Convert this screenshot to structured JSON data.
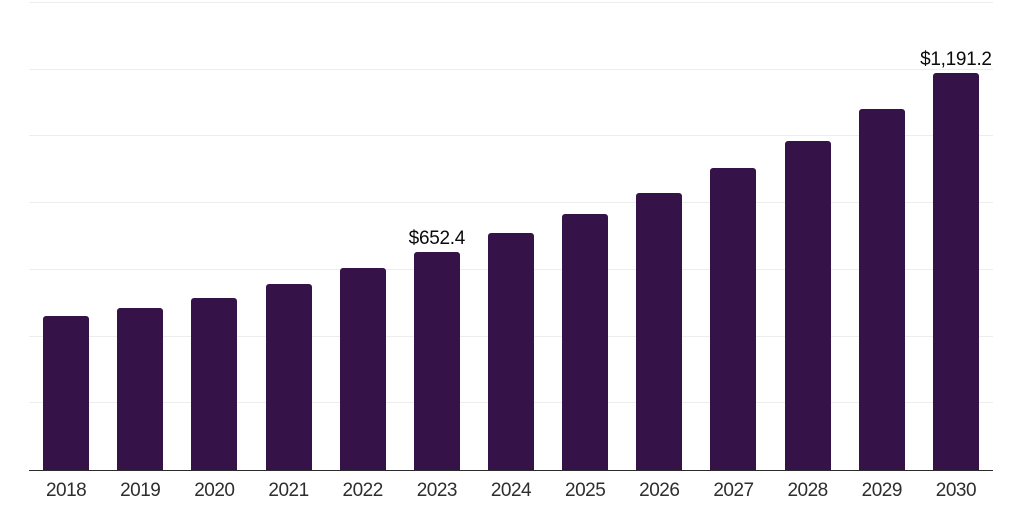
{
  "chart_data": {
    "type": "bar",
    "title": "",
    "xlabel": "",
    "ylabel": "",
    "categories": [
      "2018",
      "2019",
      "2020",
      "2021",
      "2022",
      "2023",
      "2024",
      "2025",
      "2026",
      "2027",
      "2028",
      "2029",
      "2030"
    ],
    "values": [
      463,
      486,
      515,
      558,
      605,
      652.4,
      710,
      768,
      830,
      905,
      985,
      1083,
      1191.2
    ],
    "value_labels": {
      "2023": "$652.4",
      "2030": "$1,191.2"
    },
    "ylim": [
      0,
      1400
    ],
    "gridline_interval": 200,
    "grid": "horizontal-only",
    "y_axis_tick_labels": "none",
    "legend_position": "none"
  },
  "colors": {
    "bar": "#351349",
    "gridline": "#ededed",
    "axis_line": "#2b2b2b",
    "tick_label": "#2e2e2e",
    "value_label": "#0b0b0b",
    "background": "#ffffff"
  }
}
